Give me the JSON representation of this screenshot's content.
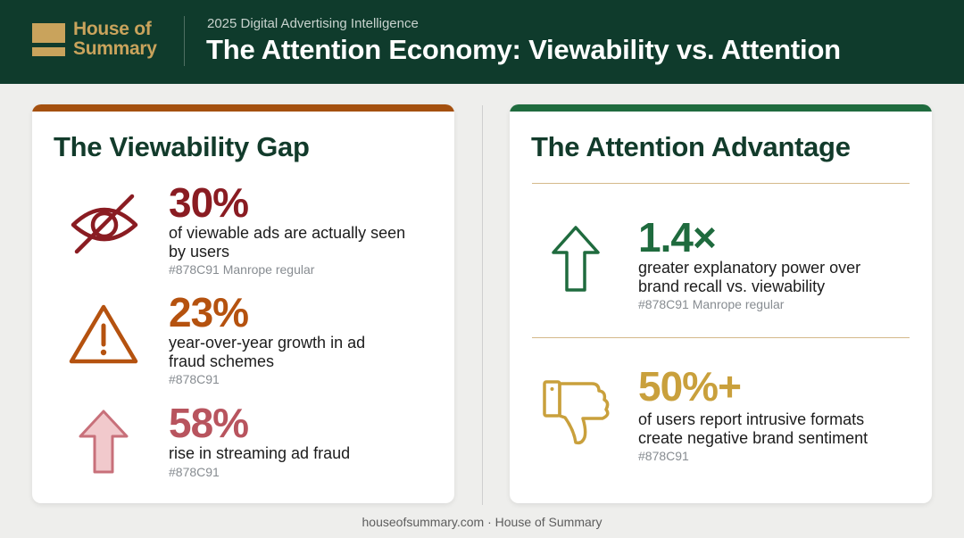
{
  "header": {
    "logo_text": "House of Summary",
    "kicker": "2025 Digital Advertising Intelligence",
    "title": "The Attention Economy: Viewability vs. Attention"
  },
  "left_card": {
    "title": "The Viewability Gap",
    "accent": "#a4500f",
    "stats": [
      {
        "icon": "eye-slash-icon",
        "value": "30%",
        "color": "#8a1c22",
        "desc": "of viewable ads are actually seen by users",
        "note": "#878C91 Manrope regular"
      },
      {
        "icon": "warning-triangle-icon",
        "value": "23%",
        "color": "#b5520f",
        "desc": "year-over-year growth in ad fraud schemes",
        "note": "#878C91"
      },
      {
        "icon": "arrow-up-icon",
        "value": "58%",
        "color": "#b8545e",
        "desc": "rise in streaming ad fraud",
        "note": "#878C91"
      }
    ]
  },
  "right_card": {
    "title": "The Attention Advantage",
    "accent": "#1f6b3e",
    "stats": [
      {
        "icon": "arrow-up-icon",
        "value": "1.4×",
        "color": "#1f6b3e",
        "desc": "greater explanatory power over brand recall vs. viewability",
        "note": "#878C91 Manrope regular"
      },
      {
        "icon": "thumbs-down-icon",
        "value": "50%+",
        "color": "#c9a03c",
        "desc": "of users report intrusive formats create negative brand sentiment",
        "note": "#878C91"
      }
    ]
  },
  "footer": {
    "text": "houseofsummary.com · House of Summary"
  }
}
